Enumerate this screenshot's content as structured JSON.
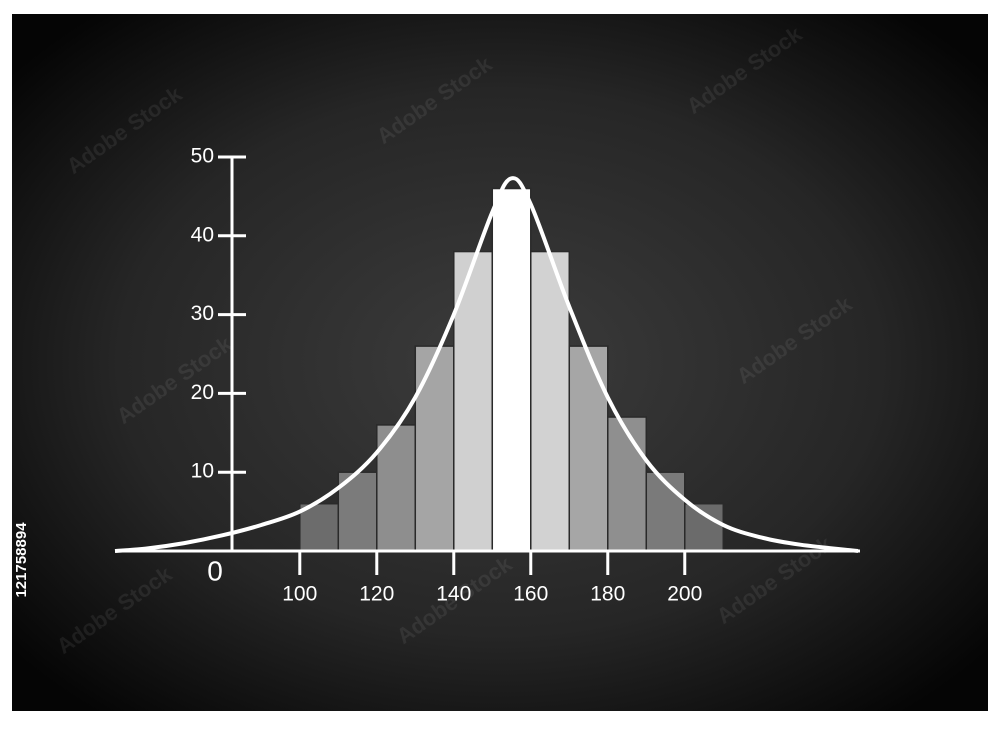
{
  "chart_data": {
    "type": "histogram",
    "bins": [
      100,
      110,
      120,
      130,
      140,
      150,
      160,
      170,
      180,
      190,
      200,
      210
    ],
    "values": [
      6,
      10,
      16,
      26,
      38,
      46,
      38,
      26,
      17,
      10,
      6
    ],
    "colors": [
      "#6c6c6c",
      "#7b7b7b",
      "#8e8e8e",
      "#a5a5a5",
      "#d0d0d0",
      "#ffffff",
      "#d2d2d2",
      "#a6a6a6",
      "#8f8f8f",
      "#7a7a7a",
      "#6b6b6b"
    ],
    "curve": {
      "x": [
        52,
        60,
        70,
        80,
        90,
        100,
        110,
        120,
        130,
        140,
        150,
        155,
        160,
        170,
        180,
        190,
        200,
        210,
        220,
        230,
        245
      ],
      "y": [
        0,
        0.3,
        1,
        2,
        3.3,
        5,
        8,
        12.5,
        19.5,
        30,
        43,
        47.3,
        44,
        31,
        19.5,
        11.5,
        6.5,
        3.3,
        1.7,
        0.8,
        0
      ],
      "color": "#ffffff"
    },
    "xlim": [
      52,
      245
    ],
    "xticks": [
      100,
      120,
      140,
      160,
      180,
      200
    ],
    "ylim": [
      0,
      50
    ],
    "yticks": [
      0,
      10,
      20,
      30,
      40,
      50
    ]
  },
  "watermark": "Adobe Stock",
  "image_id": "121758894"
}
